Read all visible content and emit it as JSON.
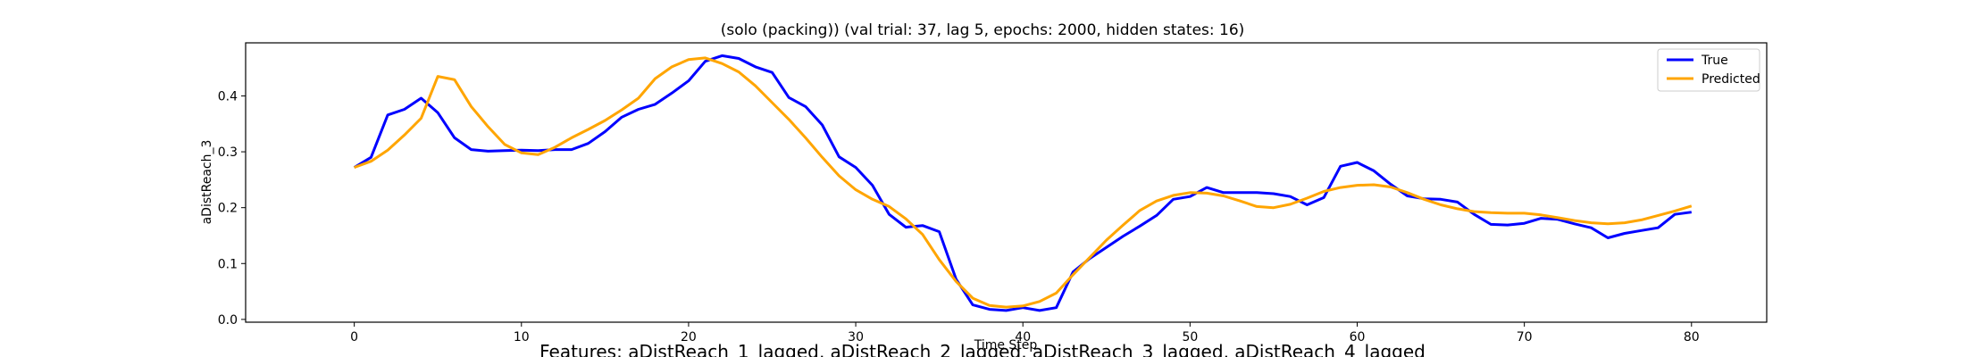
{
  "chart_data": {
    "type": "line",
    "title": "(solo (packing)) (val trial: 37, lag 5, epochs: 2000, hidden states: 16)",
    "xlabel": "Time Step",
    "ylabel": "aDistReach_3",
    "caption": "Features: aDistReach_1_lagged, aDistReach_2_lagged, aDistReach_3_lagged, aDistReach_4_lagged",
    "xlim": [
      -6.5,
      84.5
    ],
    "ylim": [
      -0.005,
      0.495
    ],
    "xticks": [
      0,
      10,
      20,
      30,
      40,
      50,
      60,
      70,
      80
    ],
    "yticks": [
      0.0,
      0.1,
      0.2,
      0.3,
      0.4
    ],
    "legend_position": "top-right",
    "grid": false,
    "series": [
      {
        "name": "True",
        "color": "#0000ff",
        "values": [
          0.272,
          0.29,
          0.366,
          0.376,
          0.396,
          0.37,
          0.325,
          0.304,
          0.301,
          0.302,
          0.303,
          0.302,
          0.304,
          0.304,
          0.315,
          0.336,
          0.362,
          0.376,
          0.385,
          0.405,
          0.427,
          0.462,
          0.472,
          0.467,
          0.452,
          0.442,
          0.397,
          0.381,
          0.348,
          0.291,
          0.272,
          0.24,
          0.188,
          0.165,
          0.168,
          0.157,
          0.072,
          0.026,
          0.018,
          0.016,
          0.021,
          0.016,
          0.021,
          0.085,
          0.109,
          0.129,
          0.149,
          0.167,
          0.186,
          0.215,
          0.22,
          0.236,
          0.227,
          0.227,
          0.227,
          0.225,
          0.22,
          0.205,
          0.218,
          0.274,
          0.281,
          0.266,
          0.242,
          0.221,
          0.216,
          0.215,
          0.21,
          0.188,
          0.17,
          0.169,
          0.172,
          0.181,
          0.179,
          0.171,
          0.164,
          0.146,
          0.154,
          0.159,
          0.164,
          0.188,
          0.192
        ]
      },
      {
        "name": "Predicted",
        "color": "#ffa500",
        "values": [
          0.272,
          0.283,
          0.303,
          0.33,
          0.36,
          0.435,
          0.429,
          0.381,
          0.345,
          0.313,
          0.298,
          0.295,
          0.308,
          0.325,
          0.34,
          0.356,
          0.375,
          0.396,
          0.431,
          0.452,
          0.465,
          0.468,
          0.458,
          0.443,
          0.418,
          0.388,
          0.358,
          0.325,
          0.29,
          0.257,
          0.232,
          0.215,
          0.202,
          0.18,
          0.152,
          0.107,
          0.068,
          0.038,
          0.025,
          0.022,
          0.024,
          0.032,
          0.047,
          0.08,
          0.111,
          0.142,
          0.169,
          0.195,
          0.212,
          0.222,
          0.227,
          0.226,
          0.221,
          0.212,
          0.202,
          0.2,
          0.206,
          0.217,
          0.229,
          0.236,
          0.24,
          0.241,
          0.237,
          0.227,
          0.215,
          0.205,
          0.198,
          0.193,
          0.191,
          0.19,
          0.19,
          0.187,
          0.182,
          0.177,
          0.173,
          0.171,
          0.173,
          0.178,
          0.186,
          0.194,
          0.203
        ]
      }
    ]
  }
}
